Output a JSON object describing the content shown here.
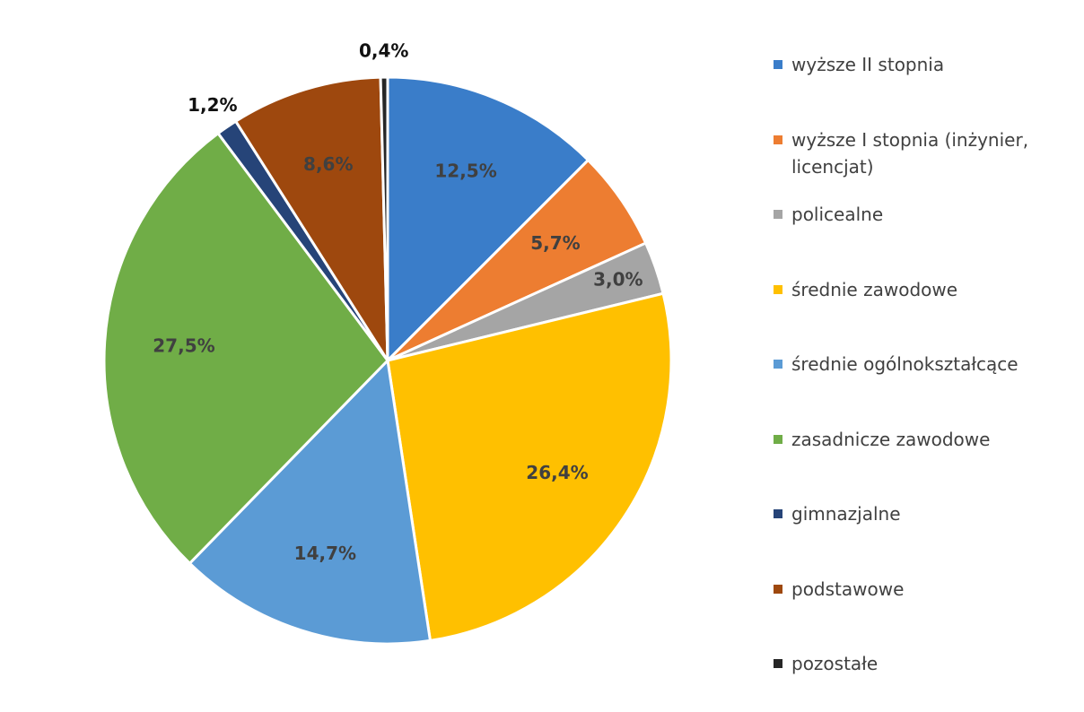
{
  "chart_data": {
    "type": "pie",
    "categories": [
      "wyższe II stopnia",
      "wyższe I stopnia (inżynier, licencjat)",
      "policealne",
      "średnie zawodowe",
      "średnie ogólnokształcące",
      "zasadnicze zawodowe",
      "gimnazjalne",
      "podstawowe",
      "pozostałe"
    ],
    "values": [
      12.5,
      5.7,
      3.0,
      26.4,
      14.7,
      27.5,
      1.2,
      8.6,
      0.4
    ],
    "value_labels": [
      "12,5%",
      "5,7%",
      "3,0%",
      "26,4%",
      "14,7%",
      "27,5%",
      "1,2%",
      "8,6%",
      "0,4%"
    ],
    "colors": [
      "#3a7dc9",
      "#ed7d31",
      "#a5a5a5",
      "#ffc000",
      "#5b9bd5",
      "#70ad47",
      "#264478",
      "#9e480e",
      "#262626"
    ],
    "legend": "right"
  }
}
